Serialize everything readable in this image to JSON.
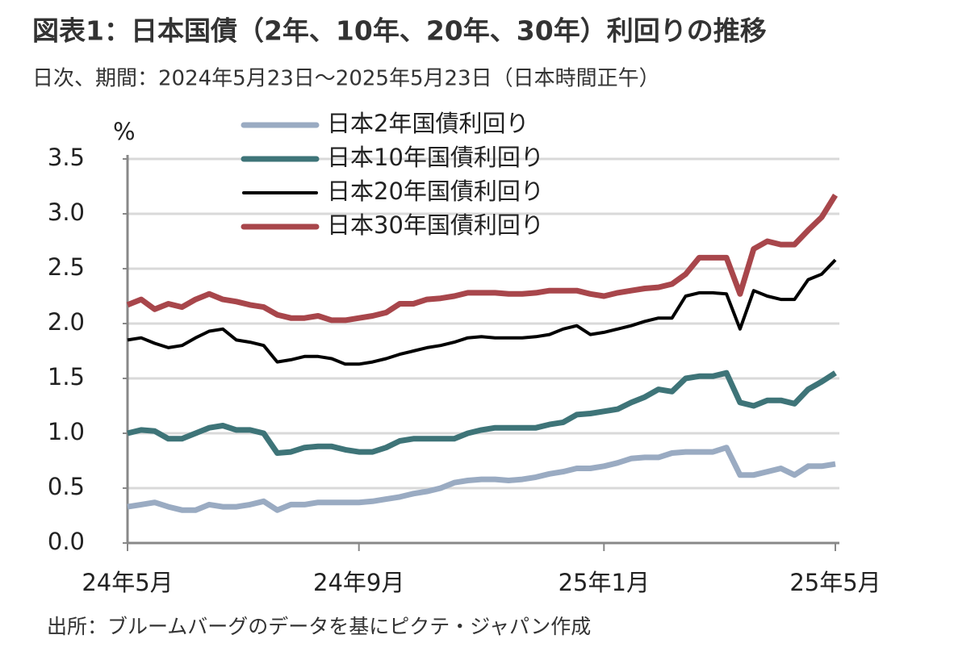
{
  "chart_data": {
    "type": "line",
    "title": "図表1：日本国債（2年、10年、20年、30年）利回りの推移",
    "subtitle": "日次、期間：2024年5月23日～2025年5月23日（日本時間正午）",
    "y_label": "%",
    "source": "出所：ブルームバーグのデータを基にピクテ・ジャパン作成",
    "categories": [
      "24年5月",
      null,
      null,
      null,
      null,
      null,
      null,
      null,
      null,
      null,
      null,
      null,
      null,
      null,
      null,
      null,
      null,
      "24年9月",
      null,
      null,
      null,
      null,
      null,
      null,
      null,
      null,
      null,
      null,
      null,
      null,
      null,
      null,
      null,
      null,
      null,
      "25年1月",
      null,
      null,
      null,
      null,
      null,
      null,
      null,
      null,
      null,
      null,
      null,
      null,
      null,
      null,
      null,
      null,
      "25年5月"
    ],
    "ylim": [
      0,
      3.5
    ],
    "yticks": [
      {
        "value": 0,
        "label": "0.0"
      },
      0.5,
      {
        "value": 1,
        "label": "1.0"
      },
      1.5,
      {
        "value": 2,
        "label": "2.0"
      },
      2.5,
      {
        "value": 3,
        "label": "3.0"
      },
      3.5
    ],
    "grid": true,
    "legend": "top",
    "series": [
      {
        "name": "日本2年国債利回り",
        "color": "#9aabc2",
        "width": 7,
        "values": [
          0.33,
          0.35,
          0.37,
          0.33,
          0.3,
          0.3,
          0.35,
          0.33,
          0.33,
          0.35,
          0.38,
          0.3,
          0.35,
          0.35,
          0.37,
          0.37,
          0.37,
          0.37,
          0.38,
          0.4,
          0.42,
          0.45,
          0.47,
          0.5,
          0.55,
          0.57,
          0.58,
          0.58,
          0.57,
          0.58,
          0.6,
          0.63,
          0.65,
          0.68,
          0.68,
          0.7,
          0.73,
          0.77,
          0.78,
          0.78,
          0.82,
          0.83,
          0.83,
          0.83,
          0.87,
          0.62,
          0.62,
          0.65,
          0.68,
          0.62,
          0.7,
          0.7,
          0.72
        ]
      },
      {
        "name": "日本10年国債利回り",
        "color": "#3e7478",
        "width": 7,
        "values": [
          1.0,
          1.03,
          1.02,
          0.95,
          0.95,
          1.0,
          1.05,
          1.07,
          1.03,
          1.03,
          1.0,
          0.82,
          0.83,
          0.87,
          0.88,
          0.88,
          0.85,
          0.83,
          0.83,
          0.87,
          0.93,
          0.95,
          0.95,
          0.95,
          0.95,
          1.0,
          1.03,
          1.05,
          1.05,
          1.05,
          1.05,
          1.08,
          1.1,
          1.17,
          1.18,
          1.2,
          1.22,
          1.28,
          1.33,
          1.4,
          1.38,
          1.5,
          1.52,
          1.52,
          1.55,
          1.28,
          1.25,
          1.3,
          1.3,
          1.27,
          1.4,
          1.47,
          1.55
        ]
      },
      {
        "name": "日本20年国債利回り",
        "color": "#000000",
        "width": 4,
        "values": [
          1.85,
          1.87,
          1.82,
          1.78,
          1.8,
          1.87,
          1.93,
          1.95,
          1.85,
          1.83,
          1.8,
          1.65,
          1.67,
          1.7,
          1.7,
          1.68,
          1.63,
          1.63,
          1.65,
          1.68,
          1.72,
          1.75,
          1.78,
          1.8,
          1.83,
          1.87,
          1.88,
          1.87,
          1.87,
          1.87,
          1.88,
          1.9,
          1.95,
          1.98,
          1.9,
          1.92,
          1.95,
          1.98,
          2.02,
          2.05,
          2.05,
          2.25,
          2.28,
          2.28,
          2.27,
          1.95,
          2.3,
          2.25,
          2.22,
          2.22,
          2.4,
          2.45,
          2.58
        ]
      },
      {
        "name": "日本30年国債利回り",
        "color": "#a8464b",
        "width": 7,
        "values": [
          2.17,
          2.22,
          2.13,
          2.18,
          2.15,
          2.22,
          2.27,
          2.22,
          2.2,
          2.17,
          2.15,
          2.08,
          2.05,
          2.05,
          2.07,
          2.03,
          2.03,
          2.05,
          2.07,
          2.1,
          2.18,
          2.18,
          2.22,
          2.23,
          2.25,
          2.28,
          2.28,
          2.28,
          2.27,
          2.27,
          2.28,
          2.3,
          2.3,
          2.3,
          2.27,
          2.25,
          2.28,
          2.3,
          2.32,
          2.33,
          2.36,
          2.45,
          2.6,
          2.6,
          2.6,
          2.27,
          2.68,
          2.75,
          2.72,
          2.72,
          2.85,
          2.97,
          3.17
        ]
      }
    ]
  }
}
